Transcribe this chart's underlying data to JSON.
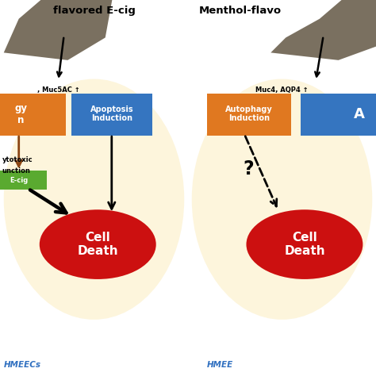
{
  "bg_color": "#ffffff",
  "ellipse_color": "#fdf5dc",
  "title1": "flavored E-cig",
  "title2": "Menthol-flavo",
  "label1": "HMEECs",
  "label2": "HMEE",
  "muc_label1": ", Muc5AC ↑",
  "muc_label2": "Muc4, AQP4 ↑",
  "autophagy_color": "#e07820",
  "apoptosis_color": "#3575c0",
  "green_box_color": "#5aaa30",
  "cell_death_color": "#cc1010",
  "cell_death_text": "Cell\nDeath",
  "autophagy_text": "Autophagy\nInduction",
  "apoptosis_text": "Apoptosis\nInduction",
  "cytotoxic_line1": "ytotoxic",
  "cytotoxic_line2": "unction",
  "green_text": "E-cig",
  "smoke_color": "#7a7060",
  "arrow_brown": "#8B4513"
}
